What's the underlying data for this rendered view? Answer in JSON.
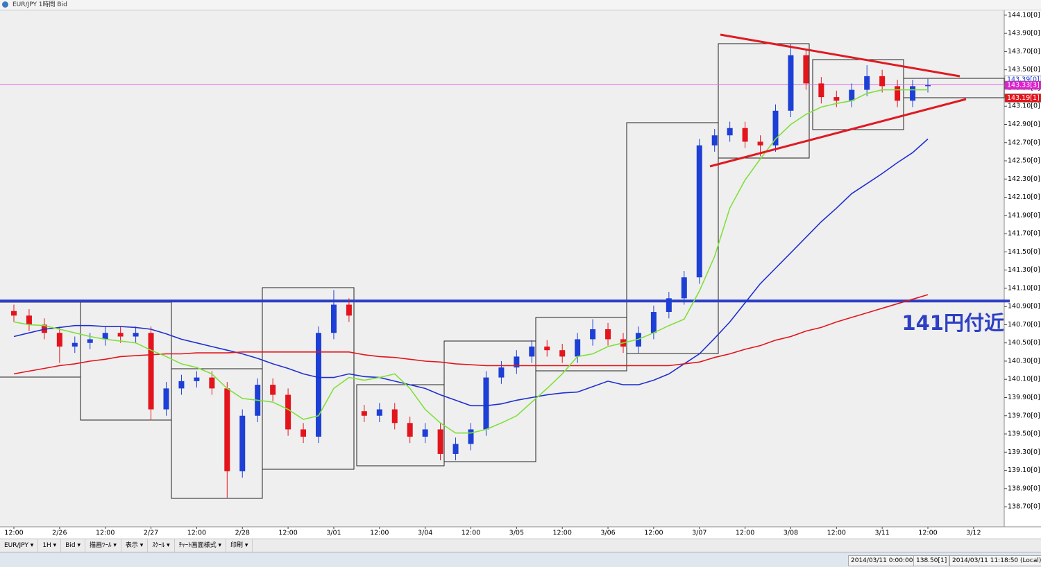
{
  "window": {
    "title": "EUR/JPY 1時間 Bid"
  },
  "toolbar": {
    "items": [
      "EUR/JPY ▾",
      "1H ▾",
      "Bid ▾",
      "描画ﾂｰﾙ ▾",
      "表示 ▾",
      "ｽｹｰﾙ ▾",
      "ﾁｬｰﾄ画面様式 ▾",
      "印刷 ▾"
    ]
  },
  "status": {
    "cursor_time": "2014/03/11 0:00:00",
    "cursor_price": "138.50[1]",
    "local_time": "2014/03/11 11:18:50 (Local)"
  },
  "chart_data": {
    "type": "candlestick",
    "annotation": "141円付近",
    "up_color": "#1d3fd6",
    "down_color": "#e3141c",
    "categories": [
      "12:00",
      null,
      null,
      "2/26",
      null,
      null,
      "12:00",
      null,
      null,
      "2/27",
      null,
      null,
      "12:00",
      null,
      null,
      "2/28",
      null,
      null,
      "12:00",
      null,
      null,
      "3/01",
      null,
      null,
      "12:00",
      null,
      null,
      "3/04",
      null,
      null,
      "12:00",
      null,
      null,
      "3/05",
      null,
      null,
      "12:00",
      null,
      null,
      "3/06",
      null,
      null,
      "12:00",
      null,
      null,
      "3/07",
      null,
      null,
      "12:00",
      null,
      null,
      "3/08",
      null,
      null,
      "12:00",
      null,
      null,
      "3/11",
      null,
      null,
      "12:00",
      null,
      null,
      "3/12"
    ],
    "open": [
      140.85,
      140.8,
      140.7,
      140.61,
      140.46,
      140.5,
      140.54,
      140.61,
      140.57,
      140.61,
      139.77,
      140.0,
      140.08,
      140.12,
      140.0,
      139.09,
      139.7,
      140.04,
      139.93,
      139.55,
      139.47,
      140.61,
      140.92,
      139.75,
      139.7,
      139.77,
      139.62,
      139.47,
      139.55,
      139.28,
      139.39,
      139.55,
      140.12,
      140.23,
      140.35,
      140.46,
      140.42,
      140.35,
      140.54,
      140.65,
      140.54,
      140.46,
      140.61,
      140.84,
      140.99,
      141.22,
      142.67,
      142.78,
      142.86,
      142.71,
      142.67,
      143.05,
      143.66,
      143.35,
      143.2,
      143.16,
      143.28,
      143.43,
      143.32,
      143.16,
      143.32,
      null,
      null,
      null
    ],
    "high": [
      140.92,
      140.87,
      140.77,
      140.68,
      140.57,
      140.61,
      140.68,
      140.68,
      140.68,
      140.68,
      140.07,
      140.15,
      140.19,
      140.19,
      140.07,
      139.77,
      140.11,
      140.11,
      140.0,
      139.62,
      140.68,
      141.08,
      140.99,
      139.82,
      139.84,
      139.84,
      139.69,
      139.62,
      139.62,
      139.46,
      139.62,
      140.19,
      140.3,
      140.42,
      140.53,
      140.53,
      140.49,
      140.61,
      140.76,
      140.72,
      140.61,
      140.68,
      140.91,
      141.06,
      141.29,
      142.74,
      142.85,
      142.93,
      142.93,
      142.78,
      143.12,
      143.78,
      143.73,
      143.42,
      143.27,
      143.35,
      143.55,
      143.5,
      143.39,
      143.39,
      143.4,
      null,
      null,
      null
    ],
    "low": [
      140.73,
      140.63,
      140.54,
      140.28,
      140.39,
      140.43,
      140.47,
      140.5,
      140.5,
      139.65,
      139.7,
      139.93,
      140.01,
      139.93,
      138.8,
      139.02,
      139.63,
      139.86,
      139.48,
      139.4,
      139.4,
      140.54,
      140.73,
      139.63,
      139.63,
      139.55,
      139.4,
      139.4,
      139.21,
      139.21,
      139.32,
      139.48,
      140.05,
      140.16,
      140.28,
      140.35,
      140.28,
      140.28,
      140.47,
      140.47,
      140.39,
      140.39,
      140.54,
      140.77,
      140.92,
      141.15,
      142.6,
      142.71,
      142.64,
      142.55,
      142.6,
      142.98,
      143.28,
      143.13,
      143.09,
      143.09,
      143.21,
      143.25,
      143.09,
      143.09,
      143.25,
      null,
      null,
      null
    ],
    "close": [
      140.8,
      140.7,
      140.61,
      140.46,
      140.5,
      140.54,
      140.61,
      140.57,
      140.61,
      139.77,
      140.0,
      140.08,
      140.12,
      140.0,
      139.09,
      139.7,
      140.04,
      139.93,
      139.55,
      139.47,
      140.61,
      140.92,
      140.8,
      139.7,
      139.77,
      139.62,
      139.47,
      139.55,
      139.28,
      139.39,
      139.55,
      140.12,
      140.23,
      140.35,
      140.46,
      140.42,
      140.35,
      140.54,
      140.65,
      140.54,
      140.46,
      140.61,
      140.84,
      140.99,
      141.22,
      142.67,
      142.78,
      142.86,
      142.71,
      142.67,
      143.05,
      143.66,
      143.35,
      143.2,
      143.16,
      143.28,
      143.43,
      143.32,
      143.16,
      143.32,
      143.33,
      null,
      null,
      null
    ],
    "series": [
      {
        "color": "#1f2fd0",
        "values": [
          140.57,
          140.61,
          140.65,
          140.67,
          140.69,
          140.69,
          140.68,
          140.68,
          140.67,
          140.65,
          140.6,
          140.54,
          140.5,
          140.46,
          140.42,
          140.38,
          140.33,
          140.27,
          140.22,
          140.16,
          140.12,
          140.12,
          140.16,
          140.13,
          140.12,
          140.08,
          140.04,
          140.0,
          139.93,
          139.87,
          139.81,
          139.81,
          139.83,
          139.87,
          139.9,
          139.93,
          139.95,
          139.96,
          140.02,
          140.08,
          140.04,
          140.04,
          140.09,
          140.16,
          140.27,
          140.38,
          140.55,
          140.73,
          140.94,
          141.15,
          141.32,
          141.49,
          141.66,
          141.83,
          141.98,
          142.14,
          142.25,
          142.36,
          142.48,
          142.59,
          142.74,
          null,
          null,
          null
        ]
      },
      {
        "color": "#e3141c",
        "values": [
          140.16,
          140.19,
          140.22,
          140.25,
          140.27,
          140.3,
          140.32,
          140.35,
          140.36,
          140.37,
          140.38,
          140.38,
          140.39,
          140.39,
          140.39,
          140.4,
          140.4,
          140.4,
          140.4,
          140.4,
          140.4,
          140.4,
          140.4,
          140.37,
          140.35,
          140.34,
          140.32,
          140.3,
          140.29,
          140.27,
          140.26,
          140.25,
          140.25,
          140.25,
          140.25,
          140.25,
          140.25,
          140.25,
          140.25,
          140.25,
          140.25,
          140.25,
          140.25,
          140.25,
          140.27,
          140.29,
          140.34,
          140.38,
          140.43,
          140.47,
          140.53,
          140.57,
          140.63,
          140.67,
          140.73,
          140.78,
          140.83,
          140.88,
          140.93,
          140.98,
          141.03,
          null,
          null,
          null
        ]
      },
      {
        "color": "#7fe03a",
        "values": [
          140.73,
          140.7,
          140.69,
          140.65,
          140.61,
          140.57,
          140.54,
          140.52,
          140.5,
          140.42,
          140.35,
          140.27,
          140.23,
          140.16,
          140.0,
          139.89,
          139.87,
          139.85,
          139.77,
          139.66,
          139.7,
          140.0,
          140.12,
          140.09,
          140.12,
          140.16,
          140.0,
          139.77,
          139.62,
          139.51,
          139.51,
          139.55,
          139.62,
          139.7,
          139.85,
          140.0,
          140.16,
          140.35,
          140.38,
          140.46,
          140.5,
          140.54,
          140.61,
          140.69,
          140.76,
          141.07,
          141.45,
          141.98,
          142.29,
          142.52,
          142.74,
          142.9,
          143.01,
          143.09,
          143.13,
          143.16,
          143.24,
          143.28,
          143.28,
          143.28,
          143.28,
          null,
          null,
          null
        ]
      }
    ],
    "hline": {
      "value": 140.96,
      "color": "#2d3fc4"
    },
    "current_line": {
      "value": 143.34,
      "color": "#e070e0"
    },
    "price_tags": [
      {
        "value": 143.39,
        "label": "143.39[0]",
        "color": "#ffffff",
        "text_color": "#1d3fd6"
      },
      {
        "value": 143.33,
        "label": "143.33[3]",
        "color": "#e020d0",
        "text_color": "#ffffff"
      },
      {
        "value": 143.19,
        "label": "143.19[1]",
        "color": "#e3141c",
        "text_color": "#ffffff"
      }
    ],
    "ylim": [
      138.48,
      144.16
    ],
    "yticks": [
      {
        "value": 138.7,
        "label": "138.70[0]"
      },
      {
        "value": 138.9,
        "label": "138.90[0]"
      },
      {
        "value": 139.1,
        "label": "139.10[0]"
      },
      {
        "value": 139.3,
        "label": "139.30[0]"
      },
      {
        "value": 139.5,
        "label": "139.50[0]"
      },
      {
        "value": 139.7,
        "label": "139.70[0]"
      },
      {
        "value": 139.9,
        "label": "139.90[0]"
      },
      {
        "value": 140.1,
        "label": "140.10[0]"
      },
      {
        "value": 140.3,
        "label": "140.30[0]"
      },
      {
        "value": 140.5,
        "label": "140.50[0]"
      },
      {
        "value": 140.7,
        "label": "140.70[0]"
      },
      {
        "value": 140.9,
        "label": "140.90[0]"
      },
      {
        "value": 141.1,
        "label": "141.10[0]"
      },
      {
        "value": 141.3,
        "label": "141.30[0]"
      },
      {
        "value": 141.5,
        "label": "141.50[0]"
      },
      {
        "value": 141.7,
        "label": "141.70[0]"
      },
      {
        "value": 141.9,
        "label": "141.90[0]"
      },
      {
        "value": 142.1,
        "label": "142.10[0]"
      },
      {
        "value": 142.3,
        "label": "142.30[0]"
      },
      {
        "value": 142.5,
        "label": "142.50[0]"
      },
      {
        "value": 142.7,
        "label": "142.70[0]"
      },
      {
        "value": 142.9,
        "label": "142.90[0]"
      },
      {
        "value": 143.1,
        "label": "143.10[0]"
      },
      {
        "value": 143.3,
        "label": "143.30[0]"
      },
      {
        "value": 143.5,
        "label": "143.50[0]"
      },
      {
        "value": 143.7,
        "label": "143.70[0]"
      },
      {
        "value": 143.9,
        "label": "143.90[0]"
      },
      {
        "value": 144.1,
        "label": "144.10[0]"
      }
    ]
  }
}
